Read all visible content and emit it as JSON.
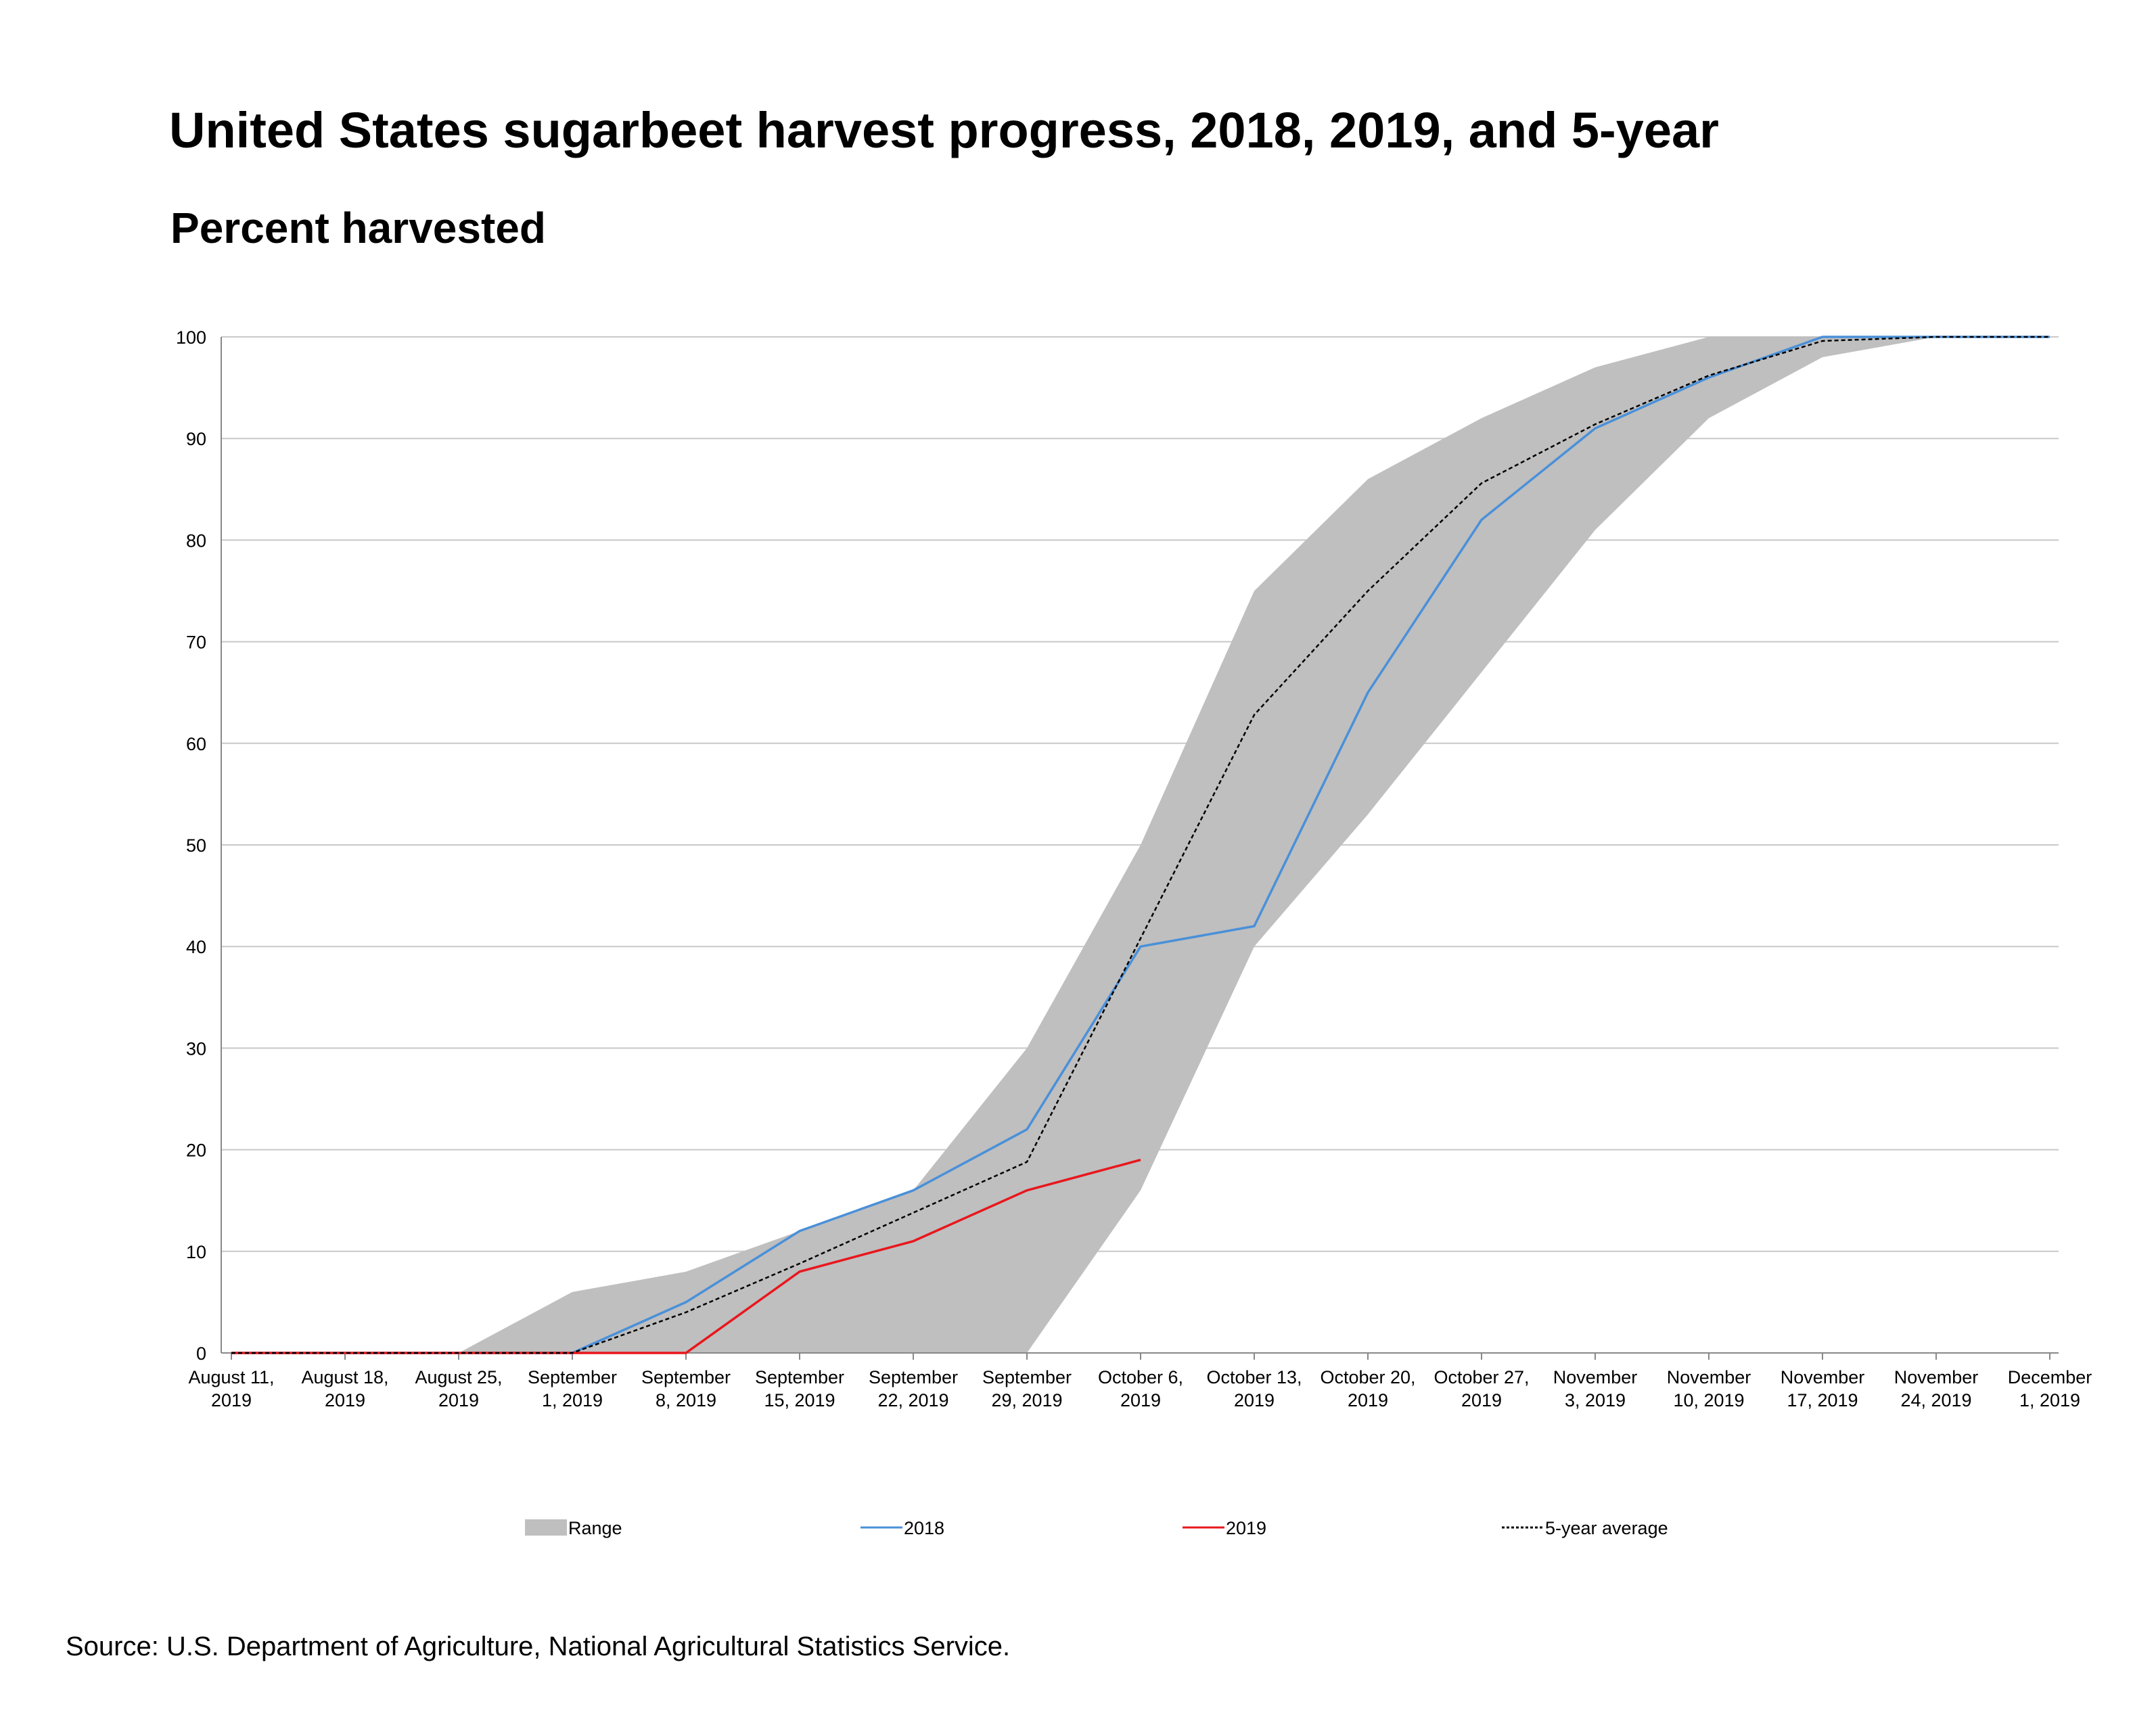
{
  "chart_data": {
    "type": "area",
    "title": "United States sugarbeet harvest progress, 2018, 2019, and 5-year",
    "subtitle": "Percent harvested",
    "source": "Source: U.S. Department of Agriculture, National Agricultural Statistics Service.",
    "ylim": [
      0,
      100
    ],
    "yticks": [
      0,
      10,
      20,
      30,
      40,
      50,
      60,
      70,
      80,
      90,
      100
    ],
    "grid": true,
    "legend_position": "bottom",
    "categories": [
      [
        "August 11,",
        "2019"
      ],
      [
        "August 18,",
        "2019"
      ],
      [
        "August 25,",
        "2019"
      ],
      [
        "September",
        "1, 2019"
      ],
      [
        "September",
        "8, 2019"
      ],
      [
        "September",
        "15, 2019"
      ],
      [
        "September",
        "22, 2019"
      ],
      [
        "September",
        "29, 2019"
      ],
      [
        "October 6,",
        "2019"
      ],
      [
        "October 13,",
        "2019"
      ],
      [
        "October 20,",
        "2019"
      ],
      [
        "October 27,",
        "2019"
      ],
      [
        "November",
        "3, 2019"
      ],
      [
        "November",
        "10, 2019"
      ],
      [
        "November",
        "17, 2019"
      ],
      [
        "November",
        "24, 2019"
      ],
      [
        "December",
        "1, 2019"
      ]
    ],
    "range": {
      "name": "Range",
      "color": "#bfbfbf",
      "low": [
        0,
        0,
        0,
        0,
        0,
        0,
        0,
        0,
        16,
        40,
        53,
        67,
        81,
        92,
        98,
        100,
        100
      ],
      "high": [
        0,
        0,
        0,
        6,
        8,
        12,
        16,
        30,
        50,
        75,
        86,
        92,
        97,
        100,
        100,
        100,
        100
      ]
    },
    "series": [
      {
        "name": "2018",
        "color": "#4a90d9",
        "dash": "",
        "values": [
          0,
          0,
          0,
          0,
          5,
          12,
          16,
          22,
          40,
          42,
          65,
          82,
          91,
          96,
          100,
          100,
          100
        ]
      },
      {
        "name": "2019",
        "color": "#e8171d",
        "dash": "",
        "values": [
          0,
          0,
          0,
          0,
          0,
          8,
          11,
          16,
          19,
          null,
          null,
          null,
          null,
          null,
          null,
          null,
          null
        ]
      },
      {
        "name": "5-year average",
        "color": "#000000",
        "dash": "6,4",
        "values": [
          0,
          0,
          0,
          0,
          4,
          8.8,
          13.8,
          18.8,
          40.8,
          62.8,
          75,
          85.6,
          91.4,
          96.2,
          99.6,
          100,
          100
        ]
      }
    ]
  }
}
